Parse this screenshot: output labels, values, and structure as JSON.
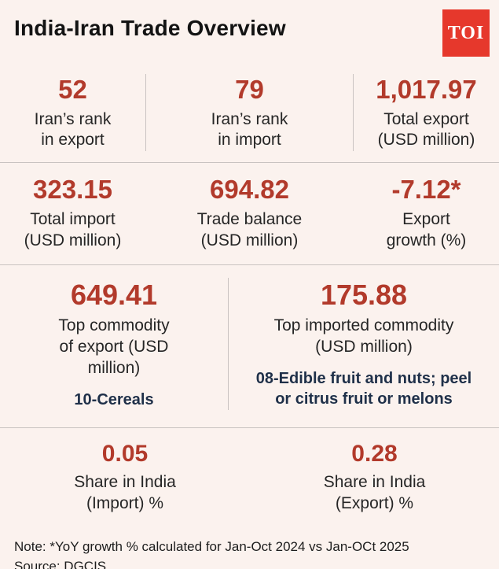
{
  "header": {
    "title": "India-Iran Trade Overview",
    "logo_text": "TOI"
  },
  "stats": {
    "row1": [
      {
        "value": "52",
        "label": "Iran’s rank\nin export"
      },
      {
        "value": "79",
        "label": "Iran’s rank\nin import"
      },
      {
        "value": "1,017.97",
        "label": "Total export\n(USD million)"
      }
    ],
    "row2": [
      {
        "value": "323.15",
        "label": "Total import\n(USD million)"
      },
      {
        "value": "694.82",
        "label": "Trade balance\n(USD million)"
      },
      {
        "value": "-7.12*",
        "label": "Export\ngrowth (%)"
      }
    ],
    "row3": [
      {
        "value": "649.41",
        "label": "Top commodity\nof export (USD\nmillion)",
        "sub": "10-Cereals"
      },
      {
        "value": "175.88",
        "label": "Top imported commodity\n(USD million)",
        "sub": "08-Edible fruit and nuts; peel\nor citrus fruit or melons"
      }
    ],
    "row4": [
      {
        "value": "0.05",
        "label": "Share in India\n(Import) %"
      },
      {
        "value": "0.28",
        "label": "Share in India\n(Export) %"
      }
    ]
  },
  "footer": {
    "note": "Note: *YoY growth % calculated for Jan-Oct 2024 vs Jan-OCt 2025",
    "source": "Source: DGCIS"
  },
  "colors": {
    "background": "#fbf2ee",
    "value_red": "#b23a2b",
    "navy_text": "#1f3049",
    "logo_red": "#e6382c",
    "text_dark": "#222222",
    "divider_gray": "#c9c3c1"
  },
  "chart_data": {
    "type": "table",
    "title": "India-Iran Trade Overview",
    "rows": [
      {
        "metric": "Iran's rank in export",
        "value": 52
      },
      {
        "metric": "Iran's rank in import",
        "value": 79
      },
      {
        "metric": "Total export (USD million)",
        "value": 1017.97
      },
      {
        "metric": "Total import (USD million)",
        "value": 323.15
      },
      {
        "metric": "Trade balance (USD million)",
        "value": 694.82
      },
      {
        "metric": "Export growth (%)",
        "value": -7.12
      },
      {
        "metric": "Top commodity of export (USD million)",
        "value": 649.41,
        "commodity": "10-Cereals"
      },
      {
        "metric": "Top imported commodity (USD million)",
        "value": 175.88,
        "commodity": "08-Edible fruit and nuts; peel or citrus fruit or melons"
      },
      {
        "metric": "Share in India (Import) %",
        "value": 0.05
      },
      {
        "metric": "Share in India (Export) %",
        "value": 0.28
      }
    ],
    "note": "*YoY growth % calculated for Jan-Oct 2024 vs Jan-OCt 2025",
    "source": "DGCIS"
  }
}
